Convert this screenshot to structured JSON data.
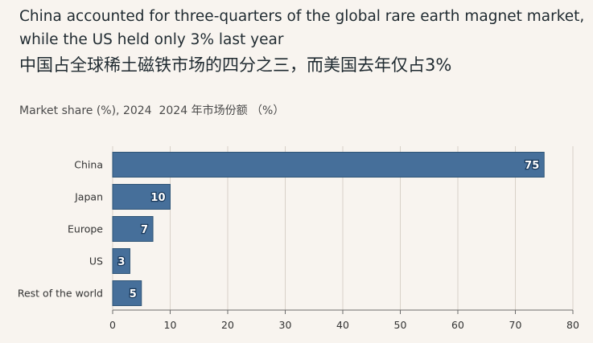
{
  "chart_data": {
    "type": "bar",
    "orientation": "horizontal",
    "title": "China accounted for three-quarters of the global rare earth magnet market, while the US held only 3% last year",
    "title_cn": "中国占全球稀土磁铁市场的四分之三，而美国去年仅占3%",
    "subtitle": "Market share (%), 2024  2024 年市场份额 （%）",
    "categories": [
      "China",
      "Japan",
      "Europe",
      "US",
      "Rest of the world"
    ],
    "values": [
      75,
      10,
      7,
      3,
      5
    ],
    "value_labels": [
      "75",
      "10",
      "7",
      "3",
      "5"
    ],
    "xlim": [
      0,
      80
    ],
    "xticks": [
      0,
      10,
      20,
      30,
      40,
      50,
      60,
      70,
      80
    ],
    "xtick_labels": [
      "0",
      "10",
      "20",
      "30",
      "40",
      "50",
      "60",
      "70",
      "80"
    ],
    "xlabel": "",
    "ylabel": "",
    "grid": "vertical",
    "legend": "none",
    "bar_color": "#466f9a",
    "bar_edge_color": "#2e5476",
    "background_color": "#f8f4ef",
    "grid_color": "#d8d1c8",
    "axis_color": "#6b6b6b"
  }
}
